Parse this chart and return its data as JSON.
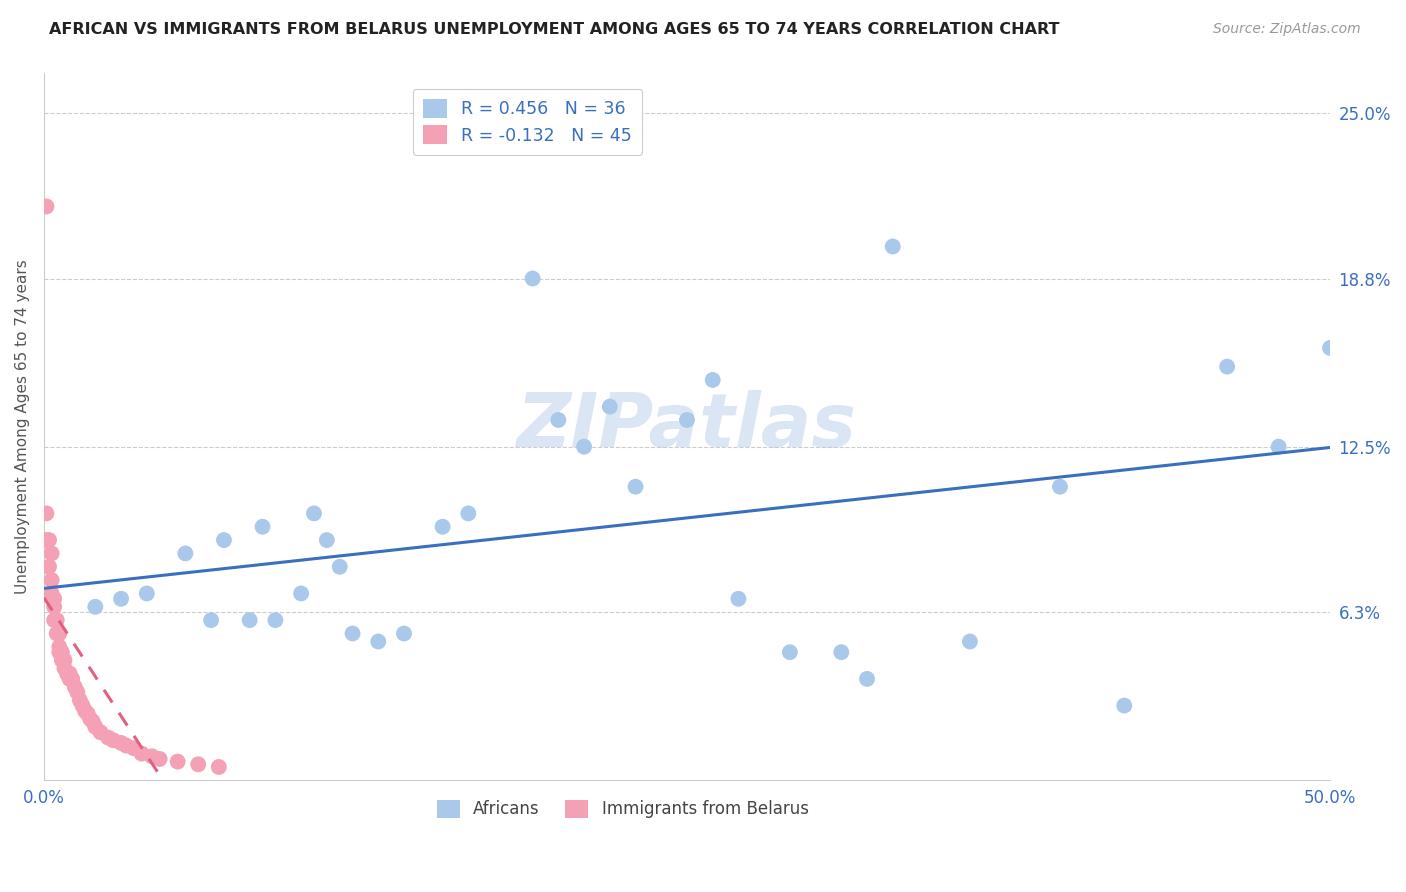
{
  "title": "AFRICAN VS IMMIGRANTS FROM BELARUS UNEMPLOYMENT AMONG AGES 65 TO 74 YEARS CORRELATION CHART",
  "source": "Source: ZipAtlas.com",
  "ylabel": "Unemployment Among Ages 65 to 74 years",
  "xlim": [
    0.0,
    0.5
  ],
  "ylim": [
    0.0,
    0.265
  ],
  "xtick_positions": [
    0.0,
    0.1,
    0.2,
    0.3,
    0.4,
    0.5
  ],
  "xticklabels": [
    "0.0%",
    "",
    "",
    "",
    "",
    "50.0%"
  ],
  "ytick_vals_right": [
    0.25,
    0.188,
    0.125,
    0.063
  ],
  "ytick_labels_right": [
    "25.0%",
    "18.8%",
    "12.5%",
    "6.3%"
  ],
  "legend_entries": [
    {
      "label": "R = 0.456   N = 36",
      "color": "#aac8ea"
    },
    {
      "label": "R = -0.132   N = 45",
      "color": "#f4a0b5"
    }
  ],
  "legend_labels": [
    "Africans",
    "Immigrants from Belarus"
  ],
  "africans_color": "#aac8ea",
  "belarus_color": "#f4a0b5",
  "trendline_africans_color": "#3a6fc0",
  "trendline_belarus_color": "#e06080",
  "watermark": "ZIPatlas",
  "africans_x": [
    0.02,
    0.03,
    0.04,
    0.055,
    0.065,
    0.07,
    0.08,
    0.085,
    0.09,
    0.1,
    0.105,
    0.11,
    0.115,
    0.12,
    0.13,
    0.14,
    0.155,
    0.165,
    0.19,
    0.2,
    0.21,
    0.22,
    0.23,
    0.25,
    0.26,
    0.27,
    0.29,
    0.31,
    0.32,
    0.33,
    0.36,
    0.395,
    0.42,
    0.46,
    0.48,
    0.5
  ],
  "africans_y": [
    0.065,
    0.068,
    0.07,
    0.085,
    0.06,
    0.09,
    0.06,
    0.095,
    0.06,
    0.07,
    0.1,
    0.09,
    0.08,
    0.055,
    0.052,
    0.055,
    0.095,
    0.1,
    0.188,
    0.135,
    0.125,
    0.14,
    0.11,
    0.135,
    0.15,
    0.068,
    0.048,
    0.048,
    0.038,
    0.2,
    0.052,
    0.11,
    0.028,
    0.155,
    0.125,
    0.162
  ],
  "belarus_x": [
    0.001,
    0.001,
    0.001,
    0.002,
    0.002,
    0.003,
    0.003,
    0.003,
    0.004,
    0.004,
    0.004,
    0.005,
    0.005,
    0.006,
    0.006,
    0.006,
    0.007,
    0.007,
    0.008,
    0.008,
    0.009,
    0.01,
    0.01,
    0.011,
    0.012,
    0.013,
    0.014,
    0.015,
    0.016,
    0.017,
    0.018,
    0.019,
    0.02,
    0.022,
    0.025,
    0.027,
    0.03,
    0.032,
    0.035,
    0.038,
    0.042,
    0.045,
    0.052,
    0.06,
    0.068
  ],
  "belarus_y": [
    0.215,
    0.1,
    0.09,
    0.09,
    0.08,
    0.085,
    0.075,
    0.07,
    0.068,
    0.065,
    0.06,
    0.06,
    0.055,
    0.055,
    0.05,
    0.048,
    0.048,
    0.045,
    0.045,
    0.042,
    0.04,
    0.04,
    0.038,
    0.038,
    0.035,
    0.033,
    0.03,
    0.028,
    0.026,
    0.025,
    0.023,
    0.022,
    0.02,
    0.018,
    0.016,
    0.015,
    0.014,
    0.013,
    0.012,
    0.01,
    0.009,
    0.008,
    0.007,
    0.006,
    0.005
  ],
  "belarus_trendline_x_end": 0.5
}
